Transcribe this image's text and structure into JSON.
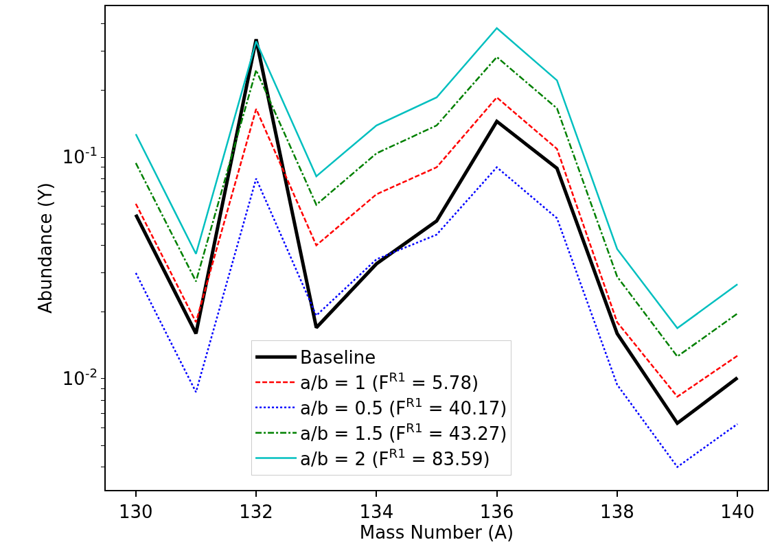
{
  "chart_data": {
    "type": "line",
    "xlabel": "Mass Number (A)",
    "ylabel": "Abundance (Y)",
    "x": [
      130,
      131,
      132,
      133,
      134,
      135,
      136,
      137,
      138,
      139,
      140
    ],
    "series": [
      {
        "name": "Baseline",
        "color": "#000000",
        "line_style": "solid",
        "values": [
          0.055,
          0.016,
          0.34,
          0.017,
          0.033,
          0.0515,
          0.145,
          0.089,
          0.016,
          0.0063,
          0.0101
        ]
      },
      {
        "name": "a/b = 1 (F$^{R1}$ = 5.78)",
        "color": "#ff0000",
        "line_style": "dashed",
        "values": [
          0.0616,
          0.018,
          0.165,
          0.04,
          0.068,
          0.09,
          0.186,
          0.109,
          0.018,
          0.0083,
          0.0127
        ]
      },
      {
        "name": "a/b = 0.5 (F$^{R1}$ = 40.17)",
        "color": "#0000ff",
        "line_style": "dotted",
        "values": [
          0.03,
          0.0087,
          0.08,
          0.0193,
          0.0346,
          0.0447,
          0.09,
          0.053,
          0.0094,
          0.004,
          0.00625
        ]
      },
      {
        "name": "a/b = 1.5 (F$^{R1}$ = 43.27)",
        "color": "#008000",
        "line_style": "dashdot",
        "values": [
          0.094,
          0.0275,
          0.247,
          0.061,
          0.104,
          0.139,
          0.283,
          0.166,
          0.0289,
          0.0126,
          0.0197
        ]
      },
      {
        "name": "a/b = 2 (F$^{R1}$ = 83.59)",
        "color": "#00bfbf",
        "line_style": "solid",
        "values": [
          0.127,
          0.0366,
          0.333,
          0.082,
          0.139,
          0.186,
          0.382,
          0.222,
          0.0385,
          0.0169,
          0.0267
        ]
      }
    ],
    "log": "y",
    "legend": "bottom",
    "marker": "none",
    "xlim": [
      129.5,
      140.5
    ],
    "xticks": [
      130,
      132,
      134,
      136,
      138,
      140
    ],
    "ylim": [
      0.00315,
      0.48
    ],
    "yticks": [
      {
        "value": 0.004,
        "label": null
      },
      {
        "value": 0.005,
        "label": null
      },
      {
        "value": 0.006,
        "label": null
      },
      {
        "value": 0.007,
        "label": null
      },
      {
        "value": 0.008,
        "label": null
      },
      {
        "value": 0.009,
        "label": null
      },
      {
        "value": 0.01,
        "label": "10$^{-2}$"
      },
      {
        "value": 0.02,
        "label": null
      },
      {
        "value": 0.03,
        "label": null
      },
      {
        "value": 0.04,
        "label": null
      },
      {
        "value": 0.05,
        "label": null
      },
      {
        "value": 0.06,
        "label": null
      },
      {
        "value": 0.07,
        "label": null
      },
      {
        "value": 0.08,
        "label": null
      },
      {
        "value": 0.09,
        "label": null
      },
      {
        "value": 0.1,
        "label": "10$^{-1}$"
      },
      {
        "value": 0.2,
        "label": null
      },
      {
        "value": 0.3,
        "label": null
      },
      {
        "value": 0.4,
        "label": null
      }
    ]
  }
}
